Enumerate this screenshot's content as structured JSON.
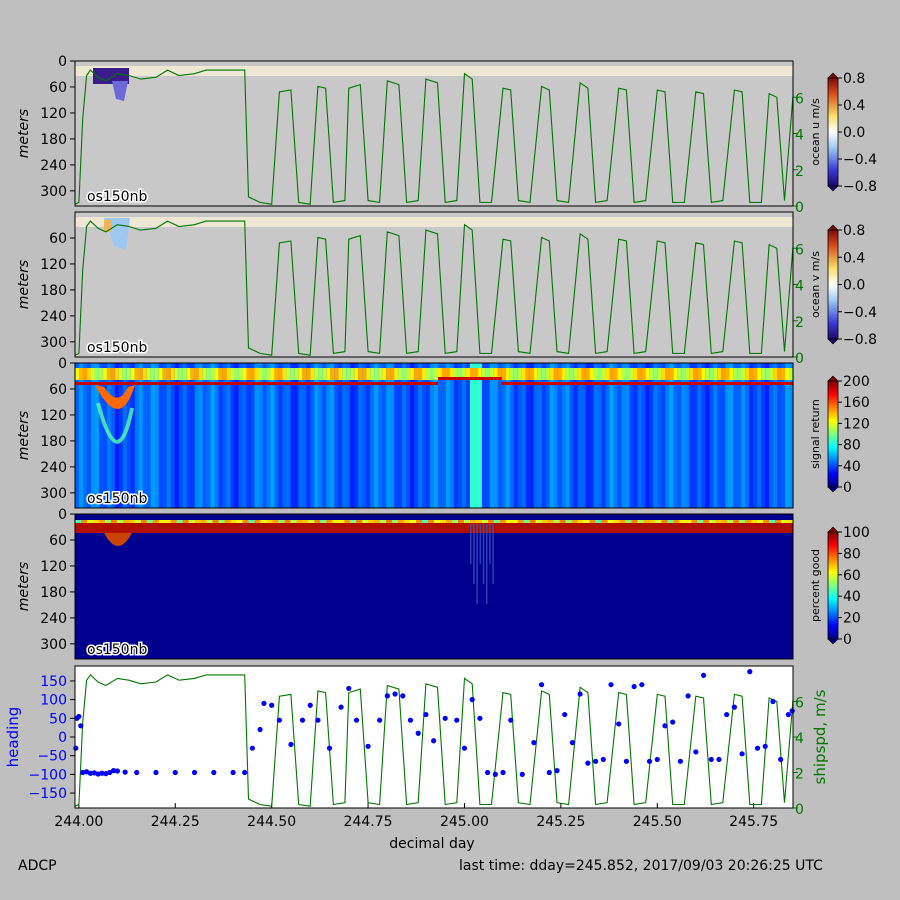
{
  "footer": {
    "left": "ADCP",
    "right": "last time: dday=245.852,  2017/09/03 20:26:25 UTC"
  },
  "colors": {
    "background": "#bfbfbf",
    "masked": "#c8c8c8",
    "shipspeed": "#007700",
    "heading": "#0000ff"
  },
  "chart_data": [
    {
      "type": "heatmap",
      "panel_label": "os150nb",
      "ylabel": "meters",
      "yticks": [
        0,
        60,
        120,
        180,
        240,
        300
      ],
      "ylim": [
        0,
        335
      ],
      "xlim": [
        243.99,
        245.852
      ],
      "colorbar": {
        "label": "ocean u m/s",
        "ticks": [
          "0.8",
          "0.4",
          "0.0",
          "−0.4",
          "−0.8"
        ],
        "range": [
          -0.8,
          0.8
        ],
        "colormap": "blue-white-red",
        "extend": "both"
      },
      "overlay": {
        "series": "shipspd, m/s",
        "right_ticks": [
          "0",
          "2",
          "4",
          "6"
        ],
        "ylim": [
          0,
          8
        ]
      }
    },
    {
      "type": "heatmap",
      "panel_label": "os150nb",
      "ylabel": "meters",
      "yticks": [
        60,
        120,
        180,
        240,
        300
      ],
      "ylim": [
        0,
        335
      ],
      "xlim": [
        243.99,
        245.852
      ],
      "colorbar": {
        "label": "ocean v m/s",
        "ticks": [
          "0.8",
          "0.4",
          "0.0",
          "−0.4",
          "−0.8"
        ],
        "range": [
          -0.8,
          0.8
        ],
        "colormap": "blue-white-red",
        "extend": "both"
      },
      "overlay": {
        "series": "shipspd, m/s",
        "right_ticks": [
          "0",
          "2",
          "4",
          "6"
        ],
        "ylim": [
          0,
          8
        ]
      }
    },
    {
      "type": "heatmap",
      "panel_label": "os150nb",
      "ylabel": "meters",
      "yticks": [
        0,
        60,
        120,
        180,
        240,
        300
      ],
      "ylim": [
        0,
        335
      ],
      "xlim": [
        243.99,
        245.852
      ],
      "colorbar": {
        "label": "signal return",
        "ticks": [
          "200",
          "160",
          "120",
          "80",
          "40",
          "0"
        ],
        "range": [
          0,
          200
        ],
        "colormap": "jet",
        "extend": "both"
      }
    },
    {
      "type": "heatmap",
      "panel_label": "os150nb",
      "ylabel": "meters",
      "yticks": [
        0,
        60,
        120,
        180,
        240,
        300
      ],
      "ylim": [
        0,
        335
      ],
      "xlim": [
        243.99,
        245.852
      ],
      "colorbar": {
        "label": "percent good",
        "ticks": [
          "100",
          "80",
          "60",
          "40",
          "20",
          "0"
        ],
        "range": [
          0,
          100
        ],
        "colormap": "jet",
        "extend": "both"
      }
    },
    {
      "type": "scatter",
      "ylabel": "heading",
      "y2label": "shipspd, m/s",
      "xlabel": "decimal day",
      "xticks": [
        "244.00",
        "244.25",
        "244.50",
        "244.75",
        "245.00",
        "245.25",
        "245.50",
        "245.75"
      ],
      "yticks": [
        "150",
        "100",
        "50",
        "0",
        "−50",
        "−100",
        "−150"
      ],
      "y2ticks": [
        "0",
        "2",
        "4",
        "6"
      ],
      "xlim": [
        243.99,
        245.852
      ],
      "ylim": [
        -190,
        190
      ],
      "y2lim": [
        0,
        8
      ],
      "series": [
        {
          "name": "heading",
          "style": "points",
          "color": "#0000ff"
        },
        {
          "name": "shipspd, m/s",
          "style": "line",
          "color": "#007700"
        }
      ],
      "shipspd": [
        [
          243.99,
          0.1
        ],
        [
          244.0,
          0.2
        ],
        [
          244.01,
          4.8
        ],
        [
          244.02,
          7.2
        ],
        [
          244.03,
          7.5
        ],
        [
          244.05,
          7.1
        ],
        [
          244.07,
          6.9
        ],
        [
          244.1,
          7.3
        ],
        [
          244.13,
          7.2
        ],
        [
          244.16,
          7.0
        ],
        [
          244.2,
          7.1
        ],
        [
          244.23,
          7.5
        ],
        [
          244.26,
          7.2
        ],
        [
          244.3,
          7.3
        ],
        [
          244.33,
          7.5
        ],
        [
          244.36,
          7.5
        ],
        [
          244.4,
          7.5
        ],
        [
          244.43,
          7.5
        ],
        [
          244.44,
          0.5
        ],
        [
          244.47,
          0.2
        ],
        [
          244.5,
          0.1
        ],
        [
          244.52,
          6.3
        ],
        [
          244.55,
          6.4
        ],
        [
          244.57,
          0.2
        ],
        [
          244.6,
          0.1
        ],
        [
          244.62,
          6.6
        ],
        [
          244.64,
          6.5
        ],
        [
          244.66,
          0.2
        ],
        [
          244.69,
          0.3
        ],
        [
          244.7,
          6.5
        ],
        [
          244.73,
          6.7
        ],
        [
          244.75,
          0.3
        ],
        [
          244.78,
          0.2
        ],
        [
          244.8,
          6.9
        ],
        [
          244.83,
          6.7
        ],
        [
          244.85,
          0.2
        ],
        [
          244.88,
          0.3
        ],
        [
          244.9,
          7.0
        ],
        [
          244.93,
          6.8
        ],
        [
          244.95,
          0.2
        ],
        [
          244.98,
          0.3
        ],
        [
          245.0,
          7.3
        ],
        [
          245.02,
          7.0
        ],
        [
          245.04,
          0.2
        ],
        [
          245.07,
          0.2
        ],
        [
          245.1,
          6.5
        ],
        [
          245.12,
          6.4
        ],
        [
          245.14,
          0.3
        ],
        [
          245.17,
          0.2
        ],
        [
          245.2,
          6.6
        ],
        [
          245.22,
          6.4
        ],
        [
          245.24,
          0.3
        ],
        [
          245.27,
          0.2
        ],
        [
          245.3,
          6.8
        ],
        [
          245.32,
          6.5
        ],
        [
          245.34,
          0.2
        ],
        [
          245.37,
          0.3
        ],
        [
          245.4,
          6.5
        ],
        [
          245.42,
          6.4
        ],
        [
          245.44,
          0.2
        ],
        [
          245.47,
          0.3
        ],
        [
          245.5,
          6.4
        ],
        [
          245.52,
          6.3
        ],
        [
          245.54,
          0.2
        ],
        [
          245.57,
          0.2
        ],
        [
          245.6,
          6.3
        ],
        [
          245.62,
          6.2
        ],
        [
          245.64,
          0.2
        ],
        [
          245.67,
          0.3
        ],
        [
          245.7,
          6.4
        ],
        [
          245.72,
          6.3
        ],
        [
          245.74,
          0.2
        ],
        [
          245.77,
          0.2
        ],
        [
          245.79,
          6.2
        ],
        [
          245.81,
          6.0
        ],
        [
          245.83,
          0.3
        ],
        [
          245.852,
          6.1
        ]
      ],
      "heading": [
        [
          243.992,
          -30
        ],
        [
          243.995,
          50
        ],
        [
          244.0,
          55
        ],
        [
          244.005,
          30
        ],
        [
          244.01,
          -95
        ],
        [
          244.02,
          -93
        ],
        [
          244.03,
          -97
        ],
        [
          244.04,
          -96
        ],
        [
          244.05,
          -99
        ],
        [
          244.06,
          -97
        ],
        [
          244.07,
          -98
        ],
        [
          244.08,
          -95
        ],
        [
          244.09,
          -90
        ],
        [
          244.1,
          -91
        ],
        [
          244.12,
          -94
        ],
        [
          244.15,
          -95
        ],
        [
          244.2,
          -95
        ],
        [
          244.25,
          -95
        ],
        [
          244.3,
          -95
        ],
        [
          244.35,
          -95
        ],
        [
          244.4,
          -95
        ],
        [
          244.43,
          -95
        ],
        [
          244.45,
          -30
        ],
        [
          244.47,
          20
        ],
        [
          244.48,
          90
        ],
        [
          244.5,
          85
        ],
        [
          244.52,
          45
        ],
        [
          244.55,
          -20
        ],
        [
          244.58,
          45
        ],
        [
          244.6,
          85
        ],
        [
          244.62,
          45
        ],
        [
          244.65,
          -30
        ],
        [
          244.68,
          80
        ],
        [
          244.7,
          130
        ],
        [
          244.72,
          45
        ],
        [
          244.75,
          -25
        ],
        [
          244.78,
          45
        ],
        [
          244.8,
          110
        ],
        [
          244.82,
          115
        ],
        [
          244.84,
          110
        ],
        [
          244.86,
          45
        ],
        [
          244.88,
          10
        ],
        [
          244.9,
          60
        ],
        [
          244.92,
          -10
        ],
        [
          244.95,
          50
        ],
        [
          244.98,
          45
        ],
        [
          245.0,
          -30
        ],
        [
          245.02,
          100
        ],
        [
          245.04,
          50
        ],
        [
          245.06,
          -95
        ],
        [
          245.08,
          -100
        ],
        [
          245.1,
          -95
        ],
        [
          245.12,
          45
        ],
        [
          245.15,
          -100
        ],
        [
          245.18,
          -15
        ],
        [
          245.2,
          140
        ],
        [
          245.22,
          -95
        ],
        [
          245.24,
          -90
        ],
        [
          245.26,
          60
        ],
        [
          245.28,
          -15
        ],
        [
          245.3,
          115
        ],
        [
          245.32,
          -70
        ],
        [
          245.34,
          -65
        ],
        [
          245.36,
          -60
        ],
        [
          245.38,
          140
        ],
        [
          245.4,
          35
        ],
        [
          245.42,
          -65
        ],
        [
          245.44,
          135
        ],
        [
          245.46,
          140
        ],
        [
          245.48,
          -65
        ],
        [
          245.5,
          -60
        ],
        [
          245.52,
          30
        ],
        [
          245.54,
          40
        ],
        [
          245.56,
          -65
        ],
        [
          245.58,
          110
        ],
        [
          245.6,
          -40
        ],
        [
          245.62,
          165
        ],
        [
          245.64,
          -60
        ],
        [
          245.66,
          -60
        ],
        [
          245.68,
          60
        ],
        [
          245.7,
          80
        ],
        [
          245.72,
          -45
        ],
        [
          245.74,
          175
        ],
        [
          245.76,
          -30
        ],
        [
          245.78,
          -25
        ],
        [
          245.8,
          95
        ],
        [
          245.82,
          -60
        ],
        [
          245.84,
          60
        ],
        [
          245.85,
          70
        ]
      ]
    }
  ]
}
